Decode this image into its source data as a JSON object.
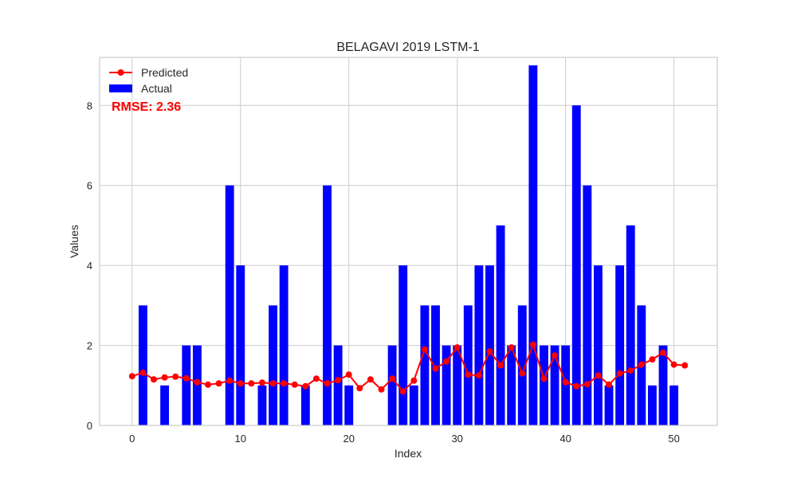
{
  "chart_data": {
    "type": "bar",
    "title": "BELAGAVI 2019 LSTM-1",
    "xlabel": "Index",
    "ylabel": "Values",
    "xlim": [
      -3,
      54
    ],
    "ylim": [
      0,
      9.2
    ],
    "x_ticks": [
      0,
      10,
      20,
      30,
      40,
      50
    ],
    "y_ticks": [
      0,
      2,
      4,
      6,
      8
    ],
    "grid": true,
    "legend_position": "top-left",
    "annotation": "RMSE: 2.36",
    "series": [
      {
        "name": "Actual",
        "type": "bar",
        "color": "#0000ff",
        "values": [
          0,
          3,
          0,
          1,
          0,
          2,
          2,
          0,
          0,
          6,
          4,
          0,
          1,
          3,
          4,
          0,
          1,
          0,
          6,
          2,
          1,
          0,
          0,
          0,
          2,
          4,
          1,
          3,
          3,
          2,
          2,
          3,
          4,
          4,
          5,
          2,
          3,
          9,
          2,
          2,
          2,
          8,
          6,
          4,
          1,
          4,
          5,
          3,
          1,
          2,
          1,
          0
        ]
      },
      {
        "name": "Predicted",
        "type": "line",
        "color": "#ff0000",
        "values": [
          1.23,
          1.32,
          1.15,
          1.2,
          1.22,
          1.18,
          1.08,
          1.02,
          1.05,
          1.12,
          1.05,
          1.05,
          1.07,
          1.05,
          1.05,
          1.02,
          0.98,
          1.17,
          1.05,
          1.13,
          1.27,
          0.93,
          1.15,
          0.9,
          1.17,
          0.85,
          1.12,
          1.9,
          1.42,
          1.6,
          1.95,
          1.27,
          1.25,
          1.85,
          1.5,
          1.95,
          1.3,
          2.02,
          1.17,
          1.75,
          1.08,
          0.98,
          1.03,
          1.25,
          1.02,
          1.3,
          1.37,
          1.52,
          1.65,
          1.82,
          1.52,
          1.5
        ]
      }
    ]
  }
}
